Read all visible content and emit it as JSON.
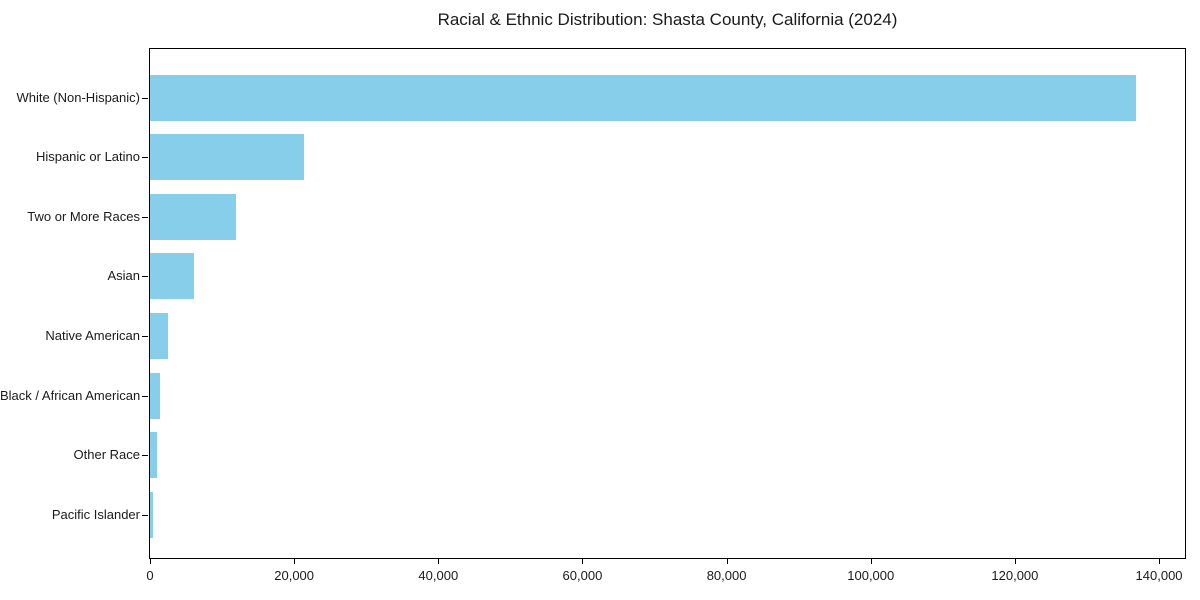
{
  "chart_data": {
    "type": "bar",
    "orientation": "horizontal",
    "title": "Racial & Ethnic Distribution: Shasta County, California (2024)",
    "categories": [
      "White (Non-Hispanic)",
      "Hispanic or Latino",
      "Two or More Races",
      "Asian",
      "Native American",
      "Black / African American",
      "Other Race",
      "Pacific Islander"
    ],
    "values": [
      136800,
      21300,
      12000,
      6100,
      2500,
      1400,
      1000,
      400
    ],
    "xlabel": "",
    "ylabel": "",
    "xlim": [
      0,
      143600
    ],
    "xticks": [
      0,
      20000,
      40000,
      60000,
      80000,
      100000,
      120000,
      140000
    ],
    "xtick_labels": [
      "0",
      "20,000",
      "40,000",
      "60,000",
      "80,000",
      "100,000",
      "120,000",
      "140,000"
    ],
    "bar_color": "#87CEEB",
    "axis_color": "#000000",
    "text_color": "#1a1a1a",
    "grid": false,
    "legend_position": "none"
  }
}
